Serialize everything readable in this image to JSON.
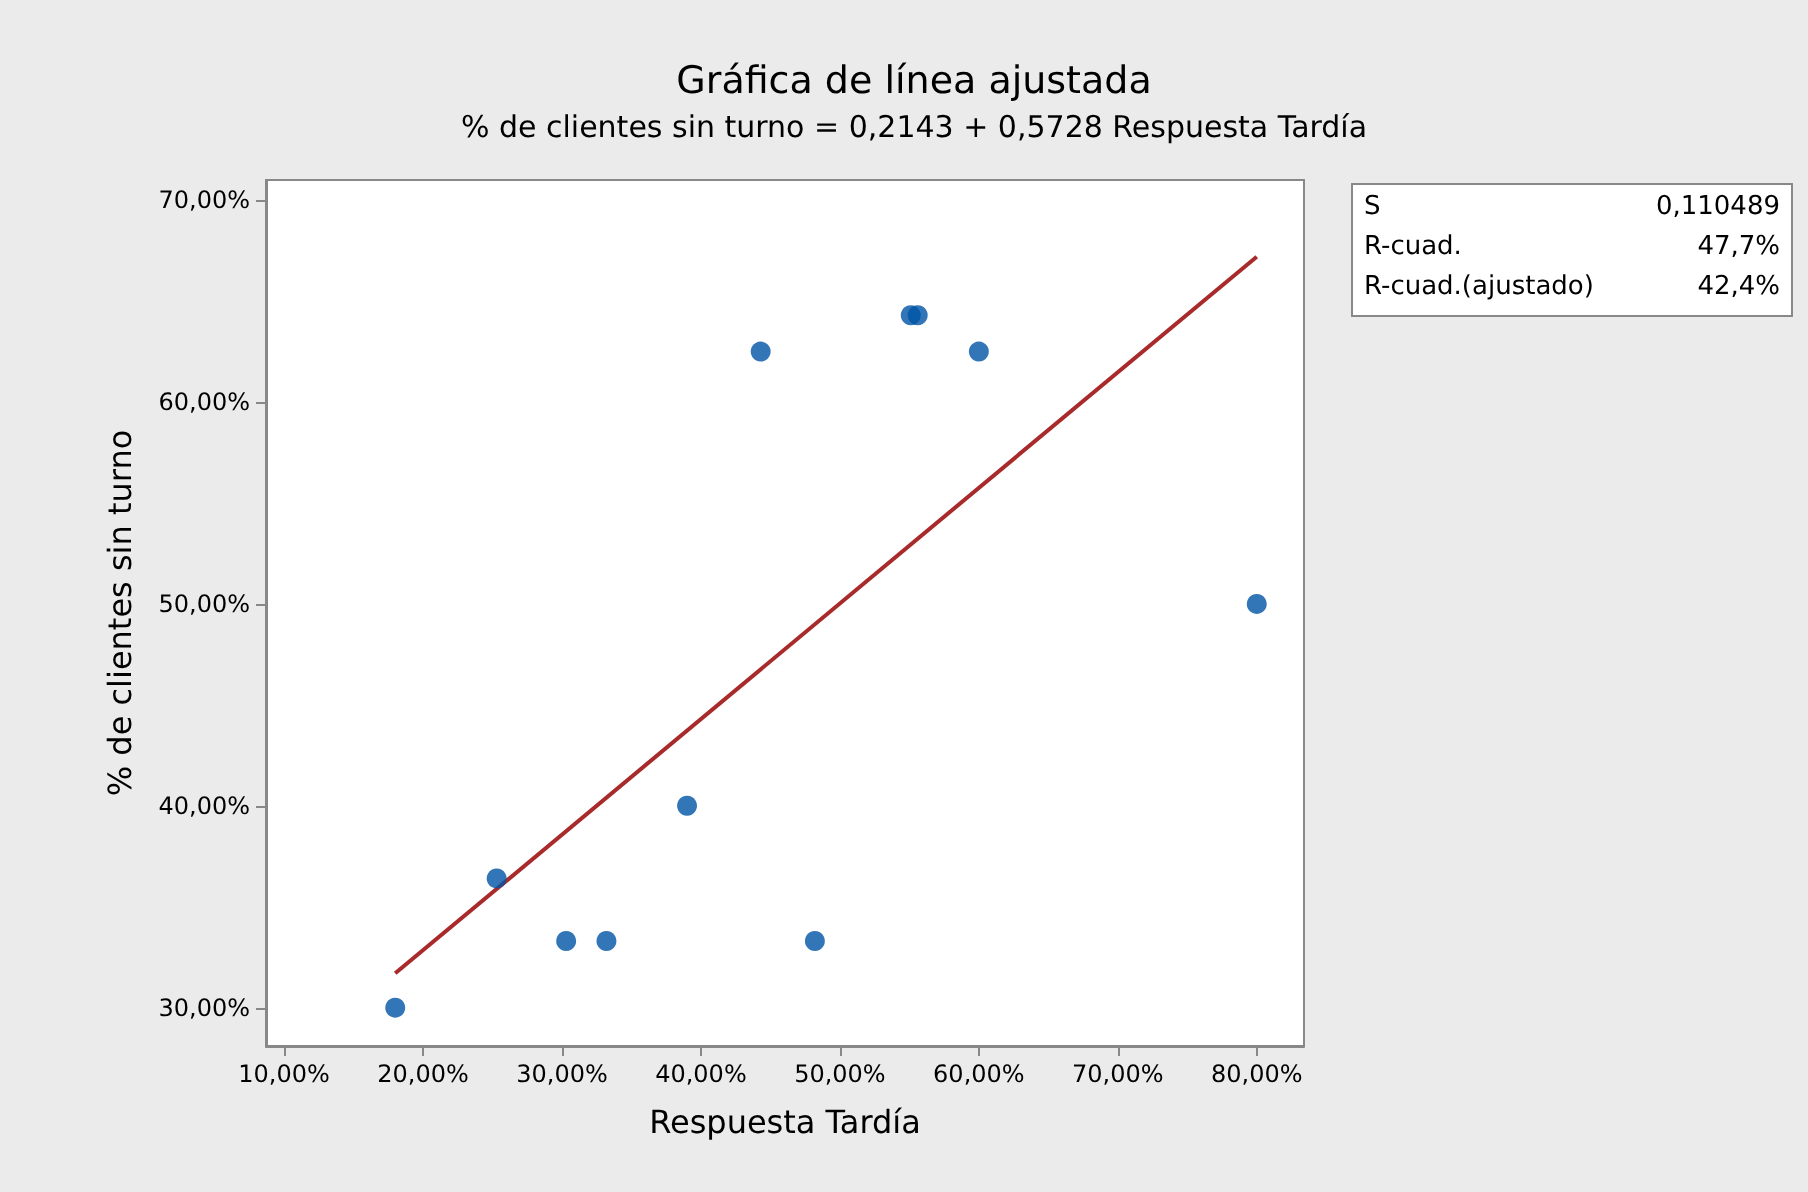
{
  "chart_data": {
    "type": "scatter",
    "title": "Gráfica de línea ajustada",
    "subtitle": "% de clientes sin turno = 0,2143 + 0,5728 Respuesta Tardía",
    "xlabel": "Respuesta Tardía",
    "ylabel": "% de clientes sin turno",
    "series": [
      {
        "color": "#0054a6",
        "marker": "circle",
        "x": [
          18,
          25.3,
          30.3,
          33.2,
          39,
          44.3,
          48.2,
          55.1,
          55.6,
          60,
          80
        ],
        "values": [
          30,
          36.4,
          33.3,
          33.3,
          40,
          62.5,
          33.3,
          64.3,
          64.3,
          62.5,
          50
        ]
      },
      {
        "type": "line",
        "color": "#a82a2a",
        "marker": "none",
        "x": [
          18,
          80
        ],
        "values": [
          31.7,
          67.2
        ]
      }
    ],
    "xlim": [
      8.7,
      83.4
    ],
    "ylim": [
      28.1,
      71
    ],
    "xticks": [
      {
        "value": 10,
        "label": "10,00%"
      },
      {
        "value": 20,
        "label": "20,00%"
      },
      {
        "value": 30,
        "label": "30,00%"
      },
      {
        "value": 40,
        "label": "40,00%"
      },
      {
        "value": 50,
        "label": "50,00%"
      },
      {
        "value": 60,
        "label": "60,00%"
      },
      {
        "value": 70,
        "label": "70,00%"
      },
      {
        "value": 80,
        "label": "80,00%"
      }
    ],
    "yticks": [
      {
        "value": 30,
        "label": "30,00%"
      },
      {
        "value": 40,
        "label": "40,00%"
      },
      {
        "value": 50,
        "label": "50,00%"
      },
      {
        "value": 60,
        "label": "60,00%"
      },
      {
        "value": 70,
        "label": "70,00%"
      }
    ],
    "annotations": [
      "S 0,110489",
      "R-cuad. 47,7%",
      "R-cuad.(ajustado) 42,4%"
    ],
    "grid": false
  }
}
